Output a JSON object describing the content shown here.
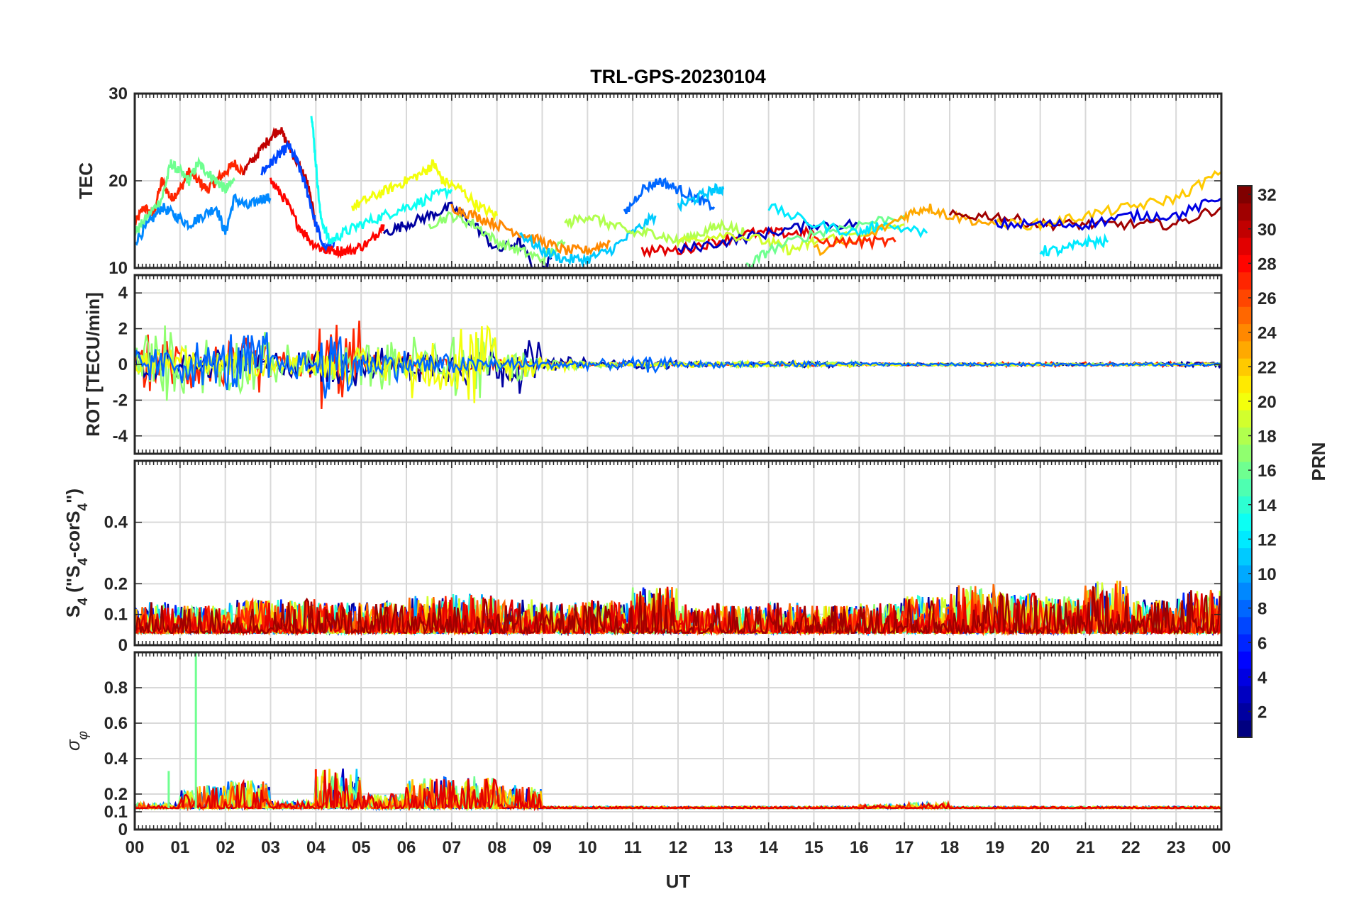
{
  "chart_data": {
    "type": "line",
    "title": "TRL-GPS-20230104",
    "xlabel": "UT",
    "x_tick_labels": [
      "00",
      "01",
      "02",
      "03",
      "04",
      "05",
      "06",
      "07",
      "08",
      "09",
      "10",
      "11",
      "12",
      "13",
      "14",
      "15",
      "16",
      "17",
      "18",
      "19",
      "20",
      "21",
      "22",
      "23",
      "00"
    ],
    "xlim": [
      0,
      24
    ],
    "grid": true,
    "colorbar": {
      "label": "PRN",
      "range": [
        1,
        32
      ],
      "ticks": [
        "2",
        "4",
        "6",
        "8",
        "10",
        "12",
        "14",
        "16",
        "18",
        "20",
        "22",
        "24",
        "26",
        "28",
        "30",
        "32"
      ],
      "colormap": "jet"
    },
    "panels": [
      {
        "id": "tec",
        "ylabel": "TEC",
        "ylim": [
          10,
          30
        ],
        "yticks": [
          "10",
          "20",
          "30"
        ],
        "series": [
          {
            "prn": 27,
            "x": [
              0,
              0.2,
              0.4,
              0.6,
              0.8,
              1.0,
              1.2,
              1.4,
              1.6,
              1.8,
              2.0,
              2.2,
              2.4
            ],
            "y": [
              15,
              17,
              16,
              20,
              18,
              19,
              21,
              20,
              19,
              20,
              21,
              22,
              21
            ]
          },
          {
            "prn": 16,
            "x": [
              0,
              0.3,
              0.6,
              0.8,
              1.0,
              1.2,
              1.4,
              1.6,
              1.8,
              2.0,
              2.2
            ],
            "y": [
              14,
              16,
              18,
              22,
              21,
              20,
              22,
              21,
              20,
              19,
              20
            ]
          },
          {
            "prn": 9,
            "x": [
              0,
              0.3,
              0.6,
              0.9,
              1.2,
              1.5,
              1.8,
              2.0,
              2.2,
              2.5,
              2.8,
              3.0
            ],
            "y": [
              13,
              15,
              17,
              16,
              15,
              16,
              17,
              14,
              18,
              17,
              18,
              18
            ]
          },
          {
            "prn": 30,
            "x": [
              2.4,
              2.7,
              3.0,
              3.2,
              3.4,
              3.6,
              3.8,
              4.0
            ],
            "y": [
              21,
              23,
              25,
              26,
              24,
              22,
              20,
              15
            ]
          },
          {
            "prn": 7,
            "x": [
              2.8,
              3.0,
              3.2,
              3.4,
              3.6,
              3.8,
              4.0,
              4.2,
              4.4
            ],
            "y": [
              21,
              22,
              23,
              24,
              22,
              19,
              15,
              12,
              13
            ]
          },
          {
            "prn": 28,
            "x": [
              3.0,
              3.3,
              3.6,
              3.9,
              4.2,
              4.5,
              4.8,
              5.2,
              5.5
            ],
            "y": [
              20,
              18,
              15,
              13,
              12,
              12,
              12,
              13,
              15
            ]
          },
          {
            "prn": 13,
            "x": [
              3.9,
              4.0,
              4.1,
              4.3,
              4.6,
              5.0,
              5.5,
              6.0,
              6.5,
              7.0
            ],
            "y": [
              28,
              22,
              16,
              13,
              14,
              15,
              16,
              17,
              18,
              19
            ]
          },
          {
            "prn": 20,
            "x": [
              4.8,
              5.2,
              5.6,
              6.0,
              6.4,
              6.6,
              6.8,
              7.2,
              7.6,
              8.0
            ],
            "y": [
              17,
              18,
              19,
              20,
              21,
              22,
              20,
              19,
              17,
              16
            ]
          },
          {
            "prn": 2,
            "x": [
              5.5,
              6.0,
              6.5,
              7.0,
              7.5,
              8.0,
              8.5,
              8.9,
              9.2
            ],
            "y": [
              14,
              15,
              16,
              17,
              15,
              12,
              13,
              9,
              11
            ]
          },
          {
            "prn": 17,
            "x": [
              6.5,
              7.0,
              7.5,
              8.0,
              8.5,
              9.0,
              9.5
            ],
            "y": [
              15,
              16,
              15,
              13,
              12,
              11,
              13
            ]
          },
          {
            "prn": 24,
            "x": [
              7.0,
              7.5,
              8.0,
              8.5,
              9.0,
              9.5,
              10.0,
              10.5
            ],
            "y": [
              17,
              16,
              15,
              14,
              13,
              12,
              12,
              13
            ]
          },
          {
            "prn": 11,
            "x": [
              8.5,
              9.0,
              9.5,
              10.0,
              10.5,
              11.0,
              11.5
            ],
            "y": [
              14,
              12,
              11,
              11,
              12,
              14,
              16
            ]
          },
          {
            "prn": 18,
            "x": [
              9.5,
              10.0,
              10.5,
              11.0,
              11.5,
              12.0,
              12.5,
              13.0,
              13.5
            ],
            "y": [
              15,
              16,
              15,
              14,
              14,
              13,
              14,
              15,
              14
            ]
          },
          {
            "prn": 8,
            "x": [
              10.8,
              11.2,
              11.6,
              12.0,
              12.4,
              12.8
            ],
            "y": [
              16,
              19,
              20,
              19,
              18,
              17
            ]
          },
          {
            "prn": 11,
            "x": [
              12.0,
              12.4,
              12.8,
              13.0
            ],
            "y": [
              17,
              18,
              19,
              19
            ]
          },
          {
            "prn": 29,
            "x": [
              11.2,
              12.0,
              12.8,
              13.6,
              14.4,
              15.0
            ],
            "y": [
              12,
              12,
              13,
              14,
              14,
              14
            ]
          },
          {
            "prn": 3,
            "x": [
              12.0,
              13.0,
              14.0,
              15.0,
              16.0
            ],
            "y": [
              12,
              13,
              14,
              15,
              15
            ]
          },
          {
            "prn": 19,
            "x": [
              12.0,
              13.0,
              14.0,
              14.5,
              15.0,
              16.0,
              17.0
            ],
            "y": [
              13,
              14,
              13,
              12,
              13,
              14,
              15
            ]
          },
          {
            "prn": 16,
            "x": [
              13.5,
              14.0,
              15.0,
              16.0,
              17.0
            ],
            "y": [
              10,
              12,
              14,
              15,
              16
            ]
          },
          {
            "prn": 12,
            "x": [
              14.0,
              15.0,
              16.0,
              16.5,
              17.5
            ],
            "y": [
              17,
              15,
              14,
              15,
              14
            ]
          },
          {
            "prn": 23,
            "x": [
              15.0,
              16.0,
              17.0,
              17.5,
              18.0,
              19.0
            ],
            "y": [
              12,
              13,
              16,
              17,
              16,
              15
            ]
          },
          {
            "prn": 27,
            "x": [
              15.0,
              16.0,
              16.8
            ],
            "y": [
              13,
              13,
              13
            ]
          },
          {
            "prn": 31,
            "x": [
              18.0,
              19.0,
              20.0,
              21.0,
              22.0,
              23.0,
              24.0
            ],
            "y": [
              16,
              16,
              15,
              15,
              15,
              15,
              17
            ]
          },
          {
            "prn": 22,
            "x": [
              19.0,
              20.0,
              21.0,
              22.0,
              23.0,
              24.0
            ],
            "y": [
              15,
              15,
              16,
              17,
              18,
              21
            ]
          },
          {
            "prn": 4,
            "x": [
              19.0,
              20.0,
              21.0,
              22.0,
              23.0,
              24.0
            ],
            "y": [
              15,
              15,
              15,
              16,
              16,
              18
            ]
          },
          {
            "prn": 12,
            "x": [
              20.0,
              20.5,
              21.0,
              21.5
            ],
            "y": [
              12,
              12,
              13,
              13
            ]
          }
        ]
      },
      {
        "id": "rot",
        "ylabel": "ROT [TECU/min]",
        "ylim": [
          -5,
          5
        ],
        "yticks": [
          "-4",
          "-2",
          "0",
          "2",
          "4"
        ],
        "series": [
          {
            "prn": 27,
            "amplitude_by_hour": [
              1.8,
              2.0,
              1.8,
              1.0,
              3.0,
              0.6,
              0.6,
              0.5,
              0.3,
              0.2,
              0.15,
              0.15,
              0.1,
              0.1,
              0.1,
              0.1,
              0.1,
              0.1,
              0.15,
              0.15,
              0.15,
              0.15,
              0.15,
              0.15
            ],
            "x_range": [
              0,
              24
            ]
          },
          {
            "prn": 2,
            "amplitude_by_hour": [
              1.0,
              1.0,
              1.0,
              1.0,
              1.5,
              1.0,
              1.2,
              1.5,
              1.8,
              0.5,
              0.3,
              0.3,
              0.2,
              0.2,
              0.2,
              0.2,
              0.1,
              0.1,
              0.1,
              0.1,
              0.1,
              0.1,
              0.15,
              0.2
            ],
            "x_range": [
              0,
              24
            ]
          },
          {
            "prn": 17,
            "amplitude_by_hour": [
              2.5,
              2.0,
              2.0,
              1.2,
              1.5,
              1.5,
              2.0,
              2.8,
              1.0,
              0.4,
              0.2,
              0.2,
              0.2,
              0.2,
              0.3,
              0.2,
              0.1,
              0.1,
              0.1,
              0.1,
              0.1,
              0.1,
              0.1,
              0.1
            ],
            "x_range": [
              0,
              24
            ]
          },
          {
            "prn": 20,
            "amplitude_by_hour": [
              1.0,
              1.0,
              1.0,
              0.8,
              1.2,
              1.2,
              2.0,
              3.0,
              1.0,
              0.4,
              0.2,
              0.2,
              0.2,
              0.2,
              0.2,
              0.2,
              0.1,
              0.1,
              0.1,
              0.1,
              0.1,
              0.1,
              0.1,
              0.1
            ],
            "x_range": [
              0,
              24
            ]
          },
          {
            "prn": 8,
            "amplitude_by_hour": [
              1.2,
              1.5,
              2.5,
              1.0,
              2.5,
              1.0,
              0.8,
              0.6,
              0.5,
              0.3,
              0.3,
              0.5,
              0.2,
              0.2,
              0.2,
              0.2,
              0.1,
              0.1,
              0.1,
              0.1,
              0.1,
              0.1,
              0.1,
              0.1
            ],
            "x_range": [
              0,
              24
            ]
          }
        ]
      },
      {
        "id": "s4",
        "ylabel": "S4 (\"S4-corS4\")",
        "ylabel_parts": {
          "base": "S",
          "sub1": "4",
          "mid": " (\"S",
          "sub2": "4",
          "mid2": "-corS",
          "sub3": "4",
          "end": "\")"
        },
        "ylim": [
          0,
          0.6
        ],
        "yticks": [
          "0",
          "0.1",
          "0.2",
          "0.4"
        ],
        "baseline": 0.04,
        "peak_by_hour": [
          0.14,
          0.13,
          0.15,
          0.15,
          0.14,
          0.14,
          0.16,
          0.17,
          0.15,
          0.14,
          0.15,
          0.19,
          0.14,
          0.13,
          0.14,
          0.13,
          0.14,
          0.16,
          0.2,
          0.17,
          0.16,
          0.21,
          0.15,
          0.18
        ],
        "series_prns": [
          2,
          6,
          10,
          14,
          17,
          19,
          22,
          25,
          27,
          29,
          31
        ]
      },
      {
        "id": "sigma_phi",
        "ylabel": "σφ",
        "ylabel_parts": {
          "base": "σ",
          "sub1": "φ"
        },
        "ylim": [
          0,
          1
        ],
        "yticks": [
          "0",
          "0.1",
          "0.2",
          "0.4",
          "0.6",
          "0.8"
        ],
        "baseline": 0.12,
        "peak_by_hour": [
          0.15,
          0.25,
          0.28,
          0.16,
          0.35,
          0.2,
          0.3,
          0.3,
          0.25,
          0.13,
          0.13,
          0.13,
          0.13,
          0.13,
          0.13,
          0.13,
          0.14,
          0.15,
          0.13,
          0.13,
          0.13,
          0.13,
          0.13,
          0.13
        ],
        "spikes": [
          {
            "prn": 16,
            "x": 0.75,
            "y": 0.33
          },
          {
            "prn": 16,
            "x": 1.35,
            "y": 1.0
          },
          {
            "prn": 27,
            "x": 4.0,
            "y": 0.34
          }
        ],
        "series_prns": [
          3,
          8,
          11,
          16,
          19,
          22,
          26,
          29
        ]
      }
    ]
  }
}
